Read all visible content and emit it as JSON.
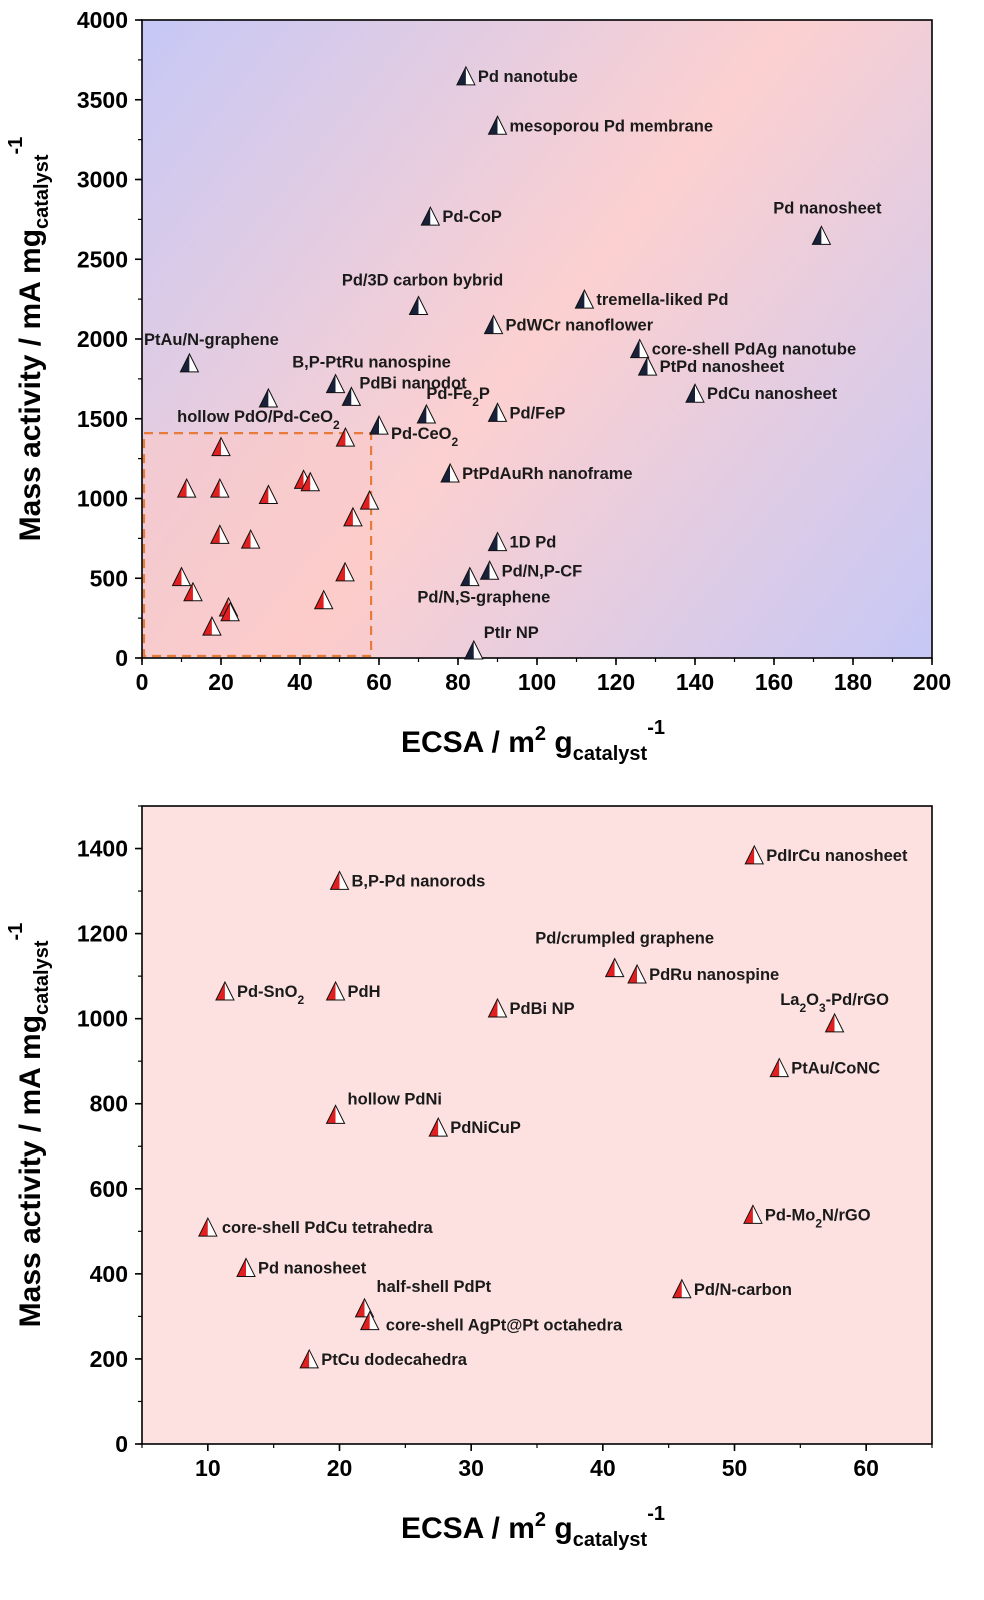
{
  "chart_data": [
    {
      "type": "scatter",
      "xlabel": "ECSA / m² gcatalyst-1",
      "xlabel_parts": {
        "main": "ECSA / m",
        "sup1": "2",
        "mid": " g",
        "sub": "catalyst",
        "sup2": "-1"
      },
      "ylabel": "Mass activity / mA mgcatalyst-1",
      "ylabel_parts": {
        "main": "Mass activity / mA mg",
        "sub": "catalyst",
        "sup": "-1"
      },
      "xlim": [
        0,
        200
      ],
      "ylim": [
        0,
        4000
      ],
      "x_ticks": [
        "0",
        "20",
        "40",
        "60",
        "80",
        "100",
        "120",
        "140",
        "160",
        "180",
        "200"
      ],
      "y_ticks": [
        "0",
        "500",
        "1000",
        "1500",
        "2000",
        "2500",
        "3000",
        "3500",
        "4000"
      ],
      "background": "gradient: blue (#c6c8f6) top-left corner and bottom-right corner, pink (#fcd0d0) diagonal band",
      "highlight_box": {
        "x": [
          0,
          58
        ],
        "y": [
          0,
          1410
        ],
        "style": "dashed",
        "color": "#e87a3a"
      },
      "marker_colors": {
        "dark": "#18203a",
        "red": "#e02020"
      },
      "points": [
        {
          "x": 82,
          "y": 3650,
          "label": "Pd nanotube",
          "color": "dark"
        },
        {
          "x": 90,
          "y": 3340,
          "label": "mesoporou Pd membrane",
          "color": "dark"
        },
        {
          "x": 73,
          "y": 2770,
          "label": "Pd-CoP",
          "color": "dark"
        },
        {
          "x": 172,
          "y": 2650,
          "label": "Pd nanosheet",
          "color": "dark"
        },
        {
          "x": 70,
          "y": 2210,
          "label": "Pd/3D carbon bybrid",
          "color": "dark"
        },
        {
          "x": 112,
          "y": 2250,
          "label": "tremella-liked Pd",
          "color": "dark"
        },
        {
          "x": 89,
          "y": 2090,
          "label": "PdWCr nanoflower",
          "color": "dark"
        },
        {
          "x": 12,
          "y": 1850,
          "label": "PtAu/N-graphene",
          "color": "dark"
        },
        {
          "x": 126,
          "y": 1940,
          "label": "core-shell PdAg nanotube",
          "color": "dark"
        },
        {
          "x": 128,
          "y": 1830,
          "label": "PtPd nanosheet",
          "color": "dark"
        },
        {
          "x": 49,
          "y": 1720,
          "label": "B,P-PtRu nanospine",
          "color": "dark"
        },
        {
          "x": 53,
          "y": 1640,
          "label": "PdBi nanodot",
          "color": "dark"
        },
        {
          "x": 140,
          "y": 1660,
          "label": "PdCu nanosheet",
          "color": "dark"
        },
        {
          "x": 32,
          "y": 1630,
          "label": "hollow PdO/Pd-CeO2",
          "color": "dark"
        },
        {
          "x": 72,
          "y": 1530,
          "label": "Pd-Fe2P",
          "color": "dark"
        },
        {
          "x": 90,
          "y": 1540,
          "label": "Pd/FeP",
          "color": "dark"
        },
        {
          "x": 60,
          "y": 1460,
          "label": "Pd-CeO2",
          "color": "dark"
        },
        {
          "x": 78,
          "y": 1160,
          "label": "PtPdAuRh nanoframe",
          "color": "dark"
        },
        {
          "x": 90,
          "y": 730,
          "label": "1D Pd",
          "color": "dark"
        },
        {
          "x": 88,
          "y": 550,
          "label": "Pd/N,P-CF",
          "color": "dark"
        },
        {
          "x": 83,
          "y": 510,
          "label": "Pd/N,S-graphene",
          "color": "dark"
        },
        {
          "x": 84,
          "y": 50,
          "label": "PtIr NP",
          "color": "dark"
        },
        {
          "x": 51.5,
          "y": 1385,
          "label": "",
          "color": "red"
        },
        {
          "x": 20,
          "y": 1325,
          "label": "",
          "color": "red"
        },
        {
          "x": 11.3,
          "y": 1065,
          "label": "",
          "color": "red"
        },
        {
          "x": 19.7,
          "y": 1065,
          "label": "",
          "color": "red"
        },
        {
          "x": 32,
          "y": 1025,
          "label": "",
          "color": "red"
        },
        {
          "x": 40.9,
          "y": 1120,
          "label": "",
          "color": "red"
        },
        {
          "x": 42.6,
          "y": 1105,
          "label": "",
          "color": "red"
        },
        {
          "x": 57.6,
          "y": 990,
          "label": "",
          "color": "red"
        },
        {
          "x": 53.4,
          "y": 885,
          "label": "",
          "color": "red"
        },
        {
          "x": 19.7,
          "y": 775,
          "label": "",
          "color": "red"
        },
        {
          "x": 27.5,
          "y": 745,
          "label": "",
          "color": "red"
        },
        {
          "x": 51.4,
          "y": 540,
          "label": "",
          "color": "red"
        },
        {
          "x": 10,
          "y": 510,
          "label": "",
          "color": "red"
        },
        {
          "x": 12.9,
          "y": 415,
          "label": "",
          "color": "red"
        },
        {
          "x": 46,
          "y": 365,
          "label": "",
          "color": "red"
        },
        {
          "x": 21.9,
          "y": 320,
          "label": "",
          "color": "red"
        },
        {
          "x": 22.3,
          "y": 290,
          "label": "",
          "color": "red"
        },
        {
          "x": 17.7,
          "y": 200,
          "label": "",
          "color": "red"
        }
      ]
    },
    {
      "type": "scatter",
      "xlabel": "ECSA / m² gcatalyst-1",
      "xlabel_parts": {
        "main": "ECSA / m",
        "sup1": "2",
        "mid": " g",
        "sub": "catalyst",
        "sup2": "-1"
      },
      "ylabel": "Mass activity / mA mgcatalyst-1",
      "ylabel_parts": {
        "main": "Mass activity / mA mg",
        "sub": "catalyst",
        "sup": "-1"
      },
      "xlim": [
        5,
        65
      ],
      "ylim": [
        0,
        1500
      ],
      "x_ticks": [
        "10",
        "20",
        "30",
        "40",
        "50",
        "60"
      ],
      "y_ticks": [
        "0",
        "200",
        "400",
        "600",
        "800",
        "1000",
        "1200",
        "1400"
      ],
      "background": "#fde1e1",
      "marker_colors": {
        "red": "#e02020"
      },
      "points": [
        {
          "x": 51.5,
          "y": 1385,
          "label": "PdIrCu nanosheet",
          "color": "red"
        },
        {
          "x": 20,
          "y": 1325,
          "label": "B,P-Pd nanorods",
          "color": "red"
        },
        {
          "x": 40.9,
          "y": 1120,
          "label": "Pd/crumpled graphene",
          "color": "red"
        },
        {
          "x": 42.6,
          "y": 1105,
          "label": "PdRu nanospine",
          "color": "red"
        },
        {
          "x": 11.3,
          "y": 1065,
          "label": "Pd-SnO2",
          "color": "red"
        },
        {
          "x": 19.7,
          "y": 1065,
          "label": "PdH",
          "color": "red"
        },
        {
          "x": 32,
          "y": 1025,
          "label": "PdBi NP",
          "color": "red"
        },
        {
          "x": 57.6,
          "y": 990,
          "label": "La2O3-Pd/rGO",
          "color": "red"
        },
        {
          "x": 53.4,
          "y": 885,
          "label": "PtAu/CoNC",
          "color": "red"
        },
        {
          "x": 19.7,
          "y": 775,
          "label": "hollow PdNi",
          "color": "red"
        },
        {
          "x": 27.5,
          "y": 745,
          "label": "PdNiCuP",
          "color": "red"
        },
        {
          "x": 51.4,
          "y": 540,
          "label": "Pd-Mo2N/rGO",
          "color": "red"
        },
        {
          "x": 10,
          "y": 510,
          "label": "core-shell PdCu tetrahedra",
          "color": "red"
        },
        {
          "x": 12.9,
          "y": 415,
          "label": "Pd nanosheet",
          "color": "red"
        },
        {
          "x": 46,
          "y": 365,
          "label": "Pd/N-carbon",
          "color": "red"
        },
        {
          "x": 21.9,
          "y": 320,
          "label": "half-shell PdPt",
          "color": "red"
        },
        {
          "x": 22.3,
          "y": 290,
          "label": "core-shell AgPt@Pt octahedra",
          "color": "red"
        },
        {
          "x": 17.7,
          "y": 200,
          "label": "PtCu dodecahedra",
          "color": "red"
        }
      ]
    }
  ]
}
